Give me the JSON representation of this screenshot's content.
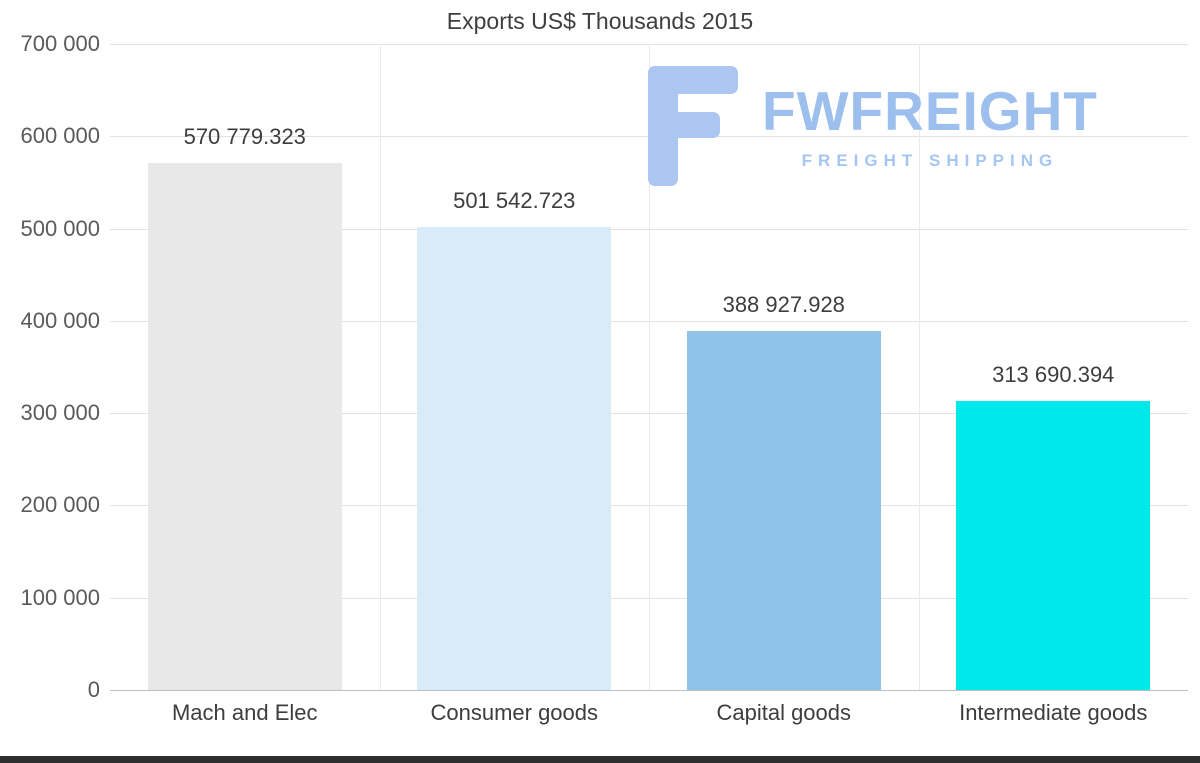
{
  "title": "Exports US$ Thousands 2015",
  "watermark": {
    "brand": "FWFREIGHT",
    "tagline": "FREIGHT SHIPPING",
    "color": "#9dbfee"
  },
  "chart_data": {
    "type": "bar",
    "title": "Exports US$ Thousands 2015",
    "categories": [
      "Mach and Elec",
      "Consumer goods",
      "Capital goods",
      "Intermediate goods"
    ],
    "values": [
      570779.323,
      501542.723,
      388927.928,
      313690.394
    ],
    "value_labels": [
      "570 779.323",
      "501 542.723",
      "388 927.928",
      "313 690.394"
    ],
    "bar_colors": [
      "#e8e8e8",
      "#d9ebf9",
      "#8fc3e8",
      "#00e9ea"
    ],
    "xlabel": "",
    "ylabel": "",
    "ylim": [
      0,
      700000
    ],
    "ytick_step": 100000,
    "ytick_labels": [
      "0",
      "100 000",
      "200 000",
      "300 000",
      "400 000",
      "500 000",
      "600 000",
      "700 000"
    ],
    "grid": true,
    "legend": false
  }
}
